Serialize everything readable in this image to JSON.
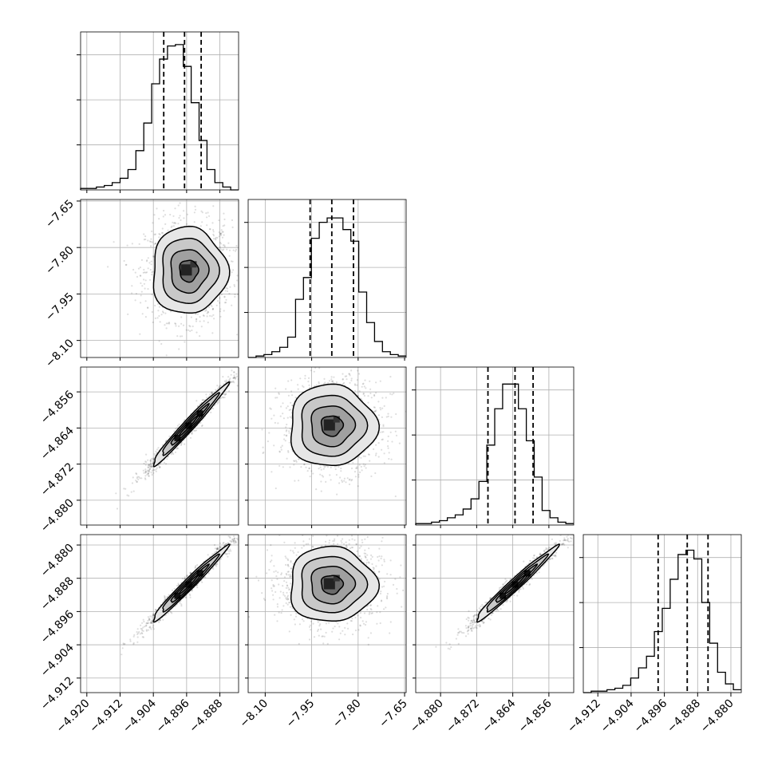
{
  "chart_data": {
    "type": "corner",
    "description_of_layout": "4x4 lower-triangle corner plot of posterior samples for 4 parameters",
    "parameters": [
      {
        "index": 0,
        "range": [
          -4.9215,
          -4.8835
        ],
        "ticks": [
          "-4.920",
          "-4.912",
          "-4.904",
          "-4.896",
          "-4.888"
        ],
        "tick_values": [
          -4.92,
          -4.912,
          -4.904,
          -4.896,
          -4.888
        ],
        "quantiles": [
          -4.9015,
          -4.8965,
          -4.8925
        ]
      },
      {
        "index": 1,
        "range": [
          -8.155,
          -7.645
        ],
        "ticks": [
          "-8.10",
          "-7.95",
          "-7.80",
          "-7.65"
        ],
        "tick_values": [
          -8.1,
          -7.95,
          -7.8,
          -7.65
        ],
        "quantiles": [
          -7.955,
          -7.885,
          -7.815
        ]
      },
      {
        "index": 2,
        "range": [
          -4.8855,
          -4.8505
        ],
        "ticks": [
          "-4.880",
          "-4.872",
          "-4.864",
          "-4.856"
        ],
        "tick_values": [
          -4.88,
          -4.872,
          -4.864,
          -4.856
        ],
        "quantiles": [
          -4.8695,
          -4.8635,
          -4.8595
        ]
      },
      {
        "index": 3,
        "range": [
          -4.9155,
          -4.8775
        ],
        "ticks": [
          "-4.912",
          "-4.904",
          "-4.896",
          "-4.888",
          "-4.880"
        ],
        "tick_values": [
          -4.912,
          -4.904,
          -4.896,
          -4.888,
          -4.88
        ],
        "quantiles": [
          -4.8975,
          -4.8905,
          -4.8855
        ]
      }
    ],
    "histograms": [
      {
        "param": 0,
        "counts": [
          0.01,
          0.01,
          0.02,
          0.03,
          0.05,
          0.08,
          0.14,
          0.27,
          0.46,
          0.73,
          0.9,
          0.99,
          1.0,
          0.85,
          0.6,
          0.34,
          0.14,
          0.05,
          0.02,
          0.0
        ]
      },
      {
        "param": 1,
        "counts": [
          0.0,
          0.01,
          0.02,
          0.04,
          0.07,
          0.14,
          0.4,
          0.55,
          0.82,
          0.93,
          0.96,
          0.96,
          0.88,
          0.8,
          0.45,
          0.24,
          0.11,
          0.04,
          0.02,
          0.01
        ]
      },
      {
        "param": 2,
        "counts": [
          0.01,
          0.01,
          0.02,
          0.03,
          0.05,
          0.07,
          0.11,
          0.18,
          0.3,
          0.55,
          0.8,
          0.97,
          0.97,
          0.8,
          0.58,
          0.33,
          0.1,
          0.05,
          0.02,
          0.01
        ]
      },
      {
        "param": 3,
        "counts": [
          0.0,
          0.01,
          0.01,
          0.02,
          0.03,
          0.05,
          0.1,
          0.17,
          0.25,
          0.42,
          0.58,
          0.78,
          0.95,
          0.98,
          0.92,
          0.62,
          0.34,
          0.14,
          0.06,
          0.02
        ]
      }
    ],
    "joints": [
      {
        "x": 0,
        "y": 1,
        "center": [
          -4.8955,
          -7.875
        ],
        "rho": 0.0,
        "sd": [
          0.0045,
          0.07
        ]
      },
      {
        "x": 0,
        "y": 2,
        "center": [
          -4.8955,
          -4.8635
        ],
        "rho": 0.98,
        "sd": [
          0.0045,
          0.0045
        ]
      },
      {
        "x": 1,
        "y": 2,
        "center": [
          -7.885,
          -4.8635
        ],
        "rho": 0.0,
        "sd": [
          0.07,
          0.0045
        ]
      },
      {
        "x": 0,
        "y": 3,
        "center": [
          -4.8955,
          -4.8895
        ],
        "rho": 0.98,
        "sd": [
          0.0045,
          0.0045
        ]
      },
      {
        "x": 1,
        "y": 3,
        "center": [
          -7.885,
          -4.8895
        ],
        "rho": 0.0,
        "sd": [
          0.07,
          0.0045
        ]
      },
      {
        "x": 2,
        "y": 3,
        "center": [
          -4.8635,
          -4.8895
        ],
        "rho": 0.98,
        "sd": [
          0.0045,
          0.0045
        ]
      }
    ],
    "contour_levels_sigma": [
      0.5,
      1.0,
      1.5,
      2.0
    ],
    "grid": true,
    "colors": {
      "line": "#000000",
      "scatter": "#000000",
      "grid": "#b0b0b0",
      "frame": "#000000"
    }
  }
}
